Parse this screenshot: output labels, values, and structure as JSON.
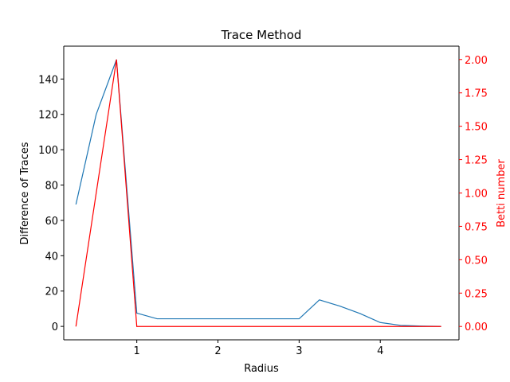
{
  "chart_data": {
    "type": "line",
    "title": "Trace Method",
    "xlabel": "Radius",
    "ylabel_left": "Difference of Traces",
    "ylabel_right": "Betti number",
    "xlim": [
      0.1,
      4.97
    ],
    "ylim_left": [
      -7.6,
      158.6
    ],
    "ylim_right": [
      -0.1,
      2.1
    ],
    "x_ticks": [
      1,
      2,
      3,
      4
    ],
    "y_left_ticks": [
      0,
      20,
      40,
      60,
      80,
      100,
      120,
      140
    ],
    "y_right_ticks": [
      "0.00",
      "0.25",
      "0.50",
      "0.75",
      "1.00",
      "1.25",
      "1.50",
      "1.75",
      "2.00"
    ],
    "grid": false,
    "colors": {
      "left_series": "#1f77b4",
      "right_series": "#ff0000",
      "axes": "#000000",
      "right_axis": "#ff0000"
    },
    "x": [
      0.25,
      0.5,
      0.75,
      1.0,
      1.25,
      1.5,
      1.75,
      2.0,
      2.25,
      2.5,
      2.75,
      3.0,
      3.25,
      3.5,
      3.75,
      4.0,
      4.25,
      4.5,
      4.75
    ],
    "series": [
      {
        "axis": "left",
        "color": "#1f77b4",
        "values": [
          69,
          120,
          151,
          7.5,
          4.3,
          4.3,
          4.3,
          4.3,
          4.3,
          4.3,
          4.3,
          4.3,
          15,
          11.5,
          7.3,
          2.2,
          0.6,
          0.2,
          0
        ]
      },
      {
        "axis": "right",
        "color": "#ff0000",
        "values": [
          0,
          1,
          2,
          0,
          0,
          0,
          0,
          0,
          0,
          0,
          0,
          0,
          0,
          0,
          0,
          0,
          0,
          0,
          0
        ]
      }
    ]
  }
}
